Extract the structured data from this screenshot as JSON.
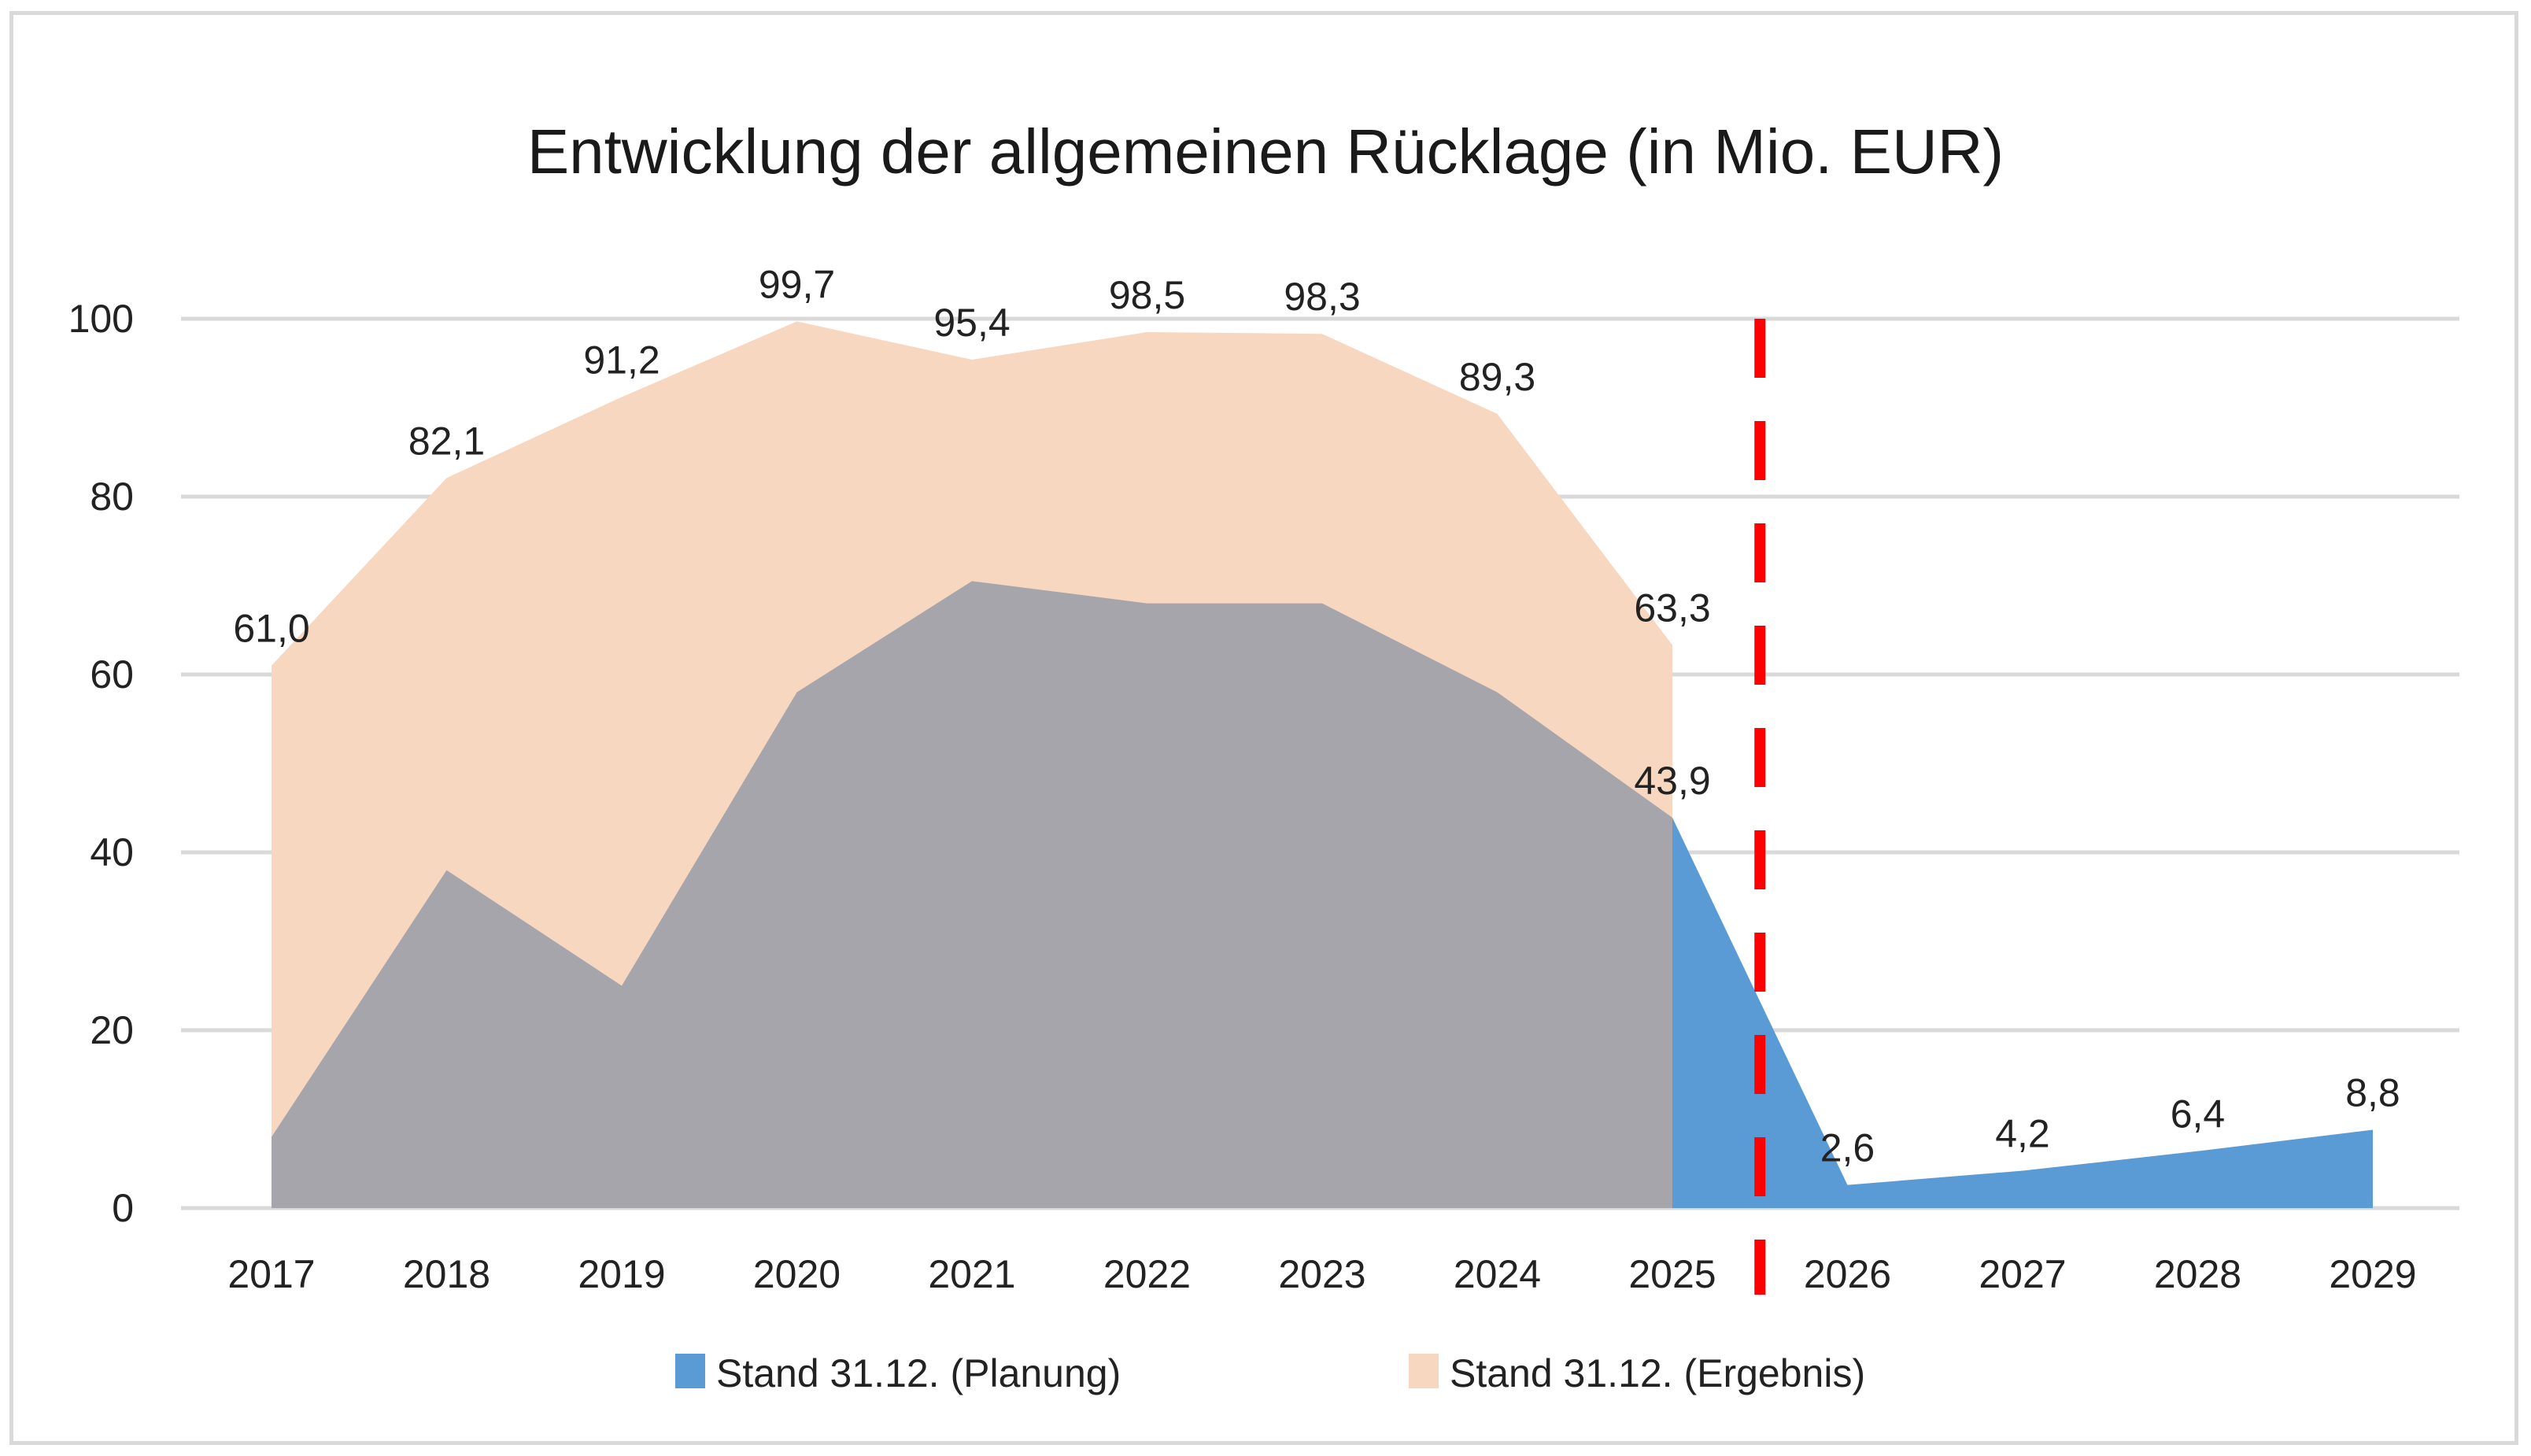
{
  "chart_data": {
    "type": "area",
    "title": "Entwicklung der allgemeinen Rücklage (in Mio. EUR)",
    "xlabel": "",
    "ylabel": "",
    "categories": [
      "2017",
      "2018",
      "2019",
      "2020",
      "2021",
      "2022",
      "2023",
      "2024",
      "2025",
      "2026",
      "2027",
      "2028",
      "2029"
    ],
    "ylim": [
      0,
      100
    ],
    "yticks": [
      0,
      20,
      40,
      60,
      80,
      100
    ],
    "grid": true,
    "legend_position": "bottom",
    "series": [
      {
        "name": "Stand 31.12. (Ergebnis)",
        "color": "#F8D7C1",
        "values": [
          61.0,
          82.1,
          91.2,
          99.7,
          95.4,
          98.5,
          98.3,
          89.3,
          63.3,
          null,
          null,
          null,
          null
        ],
        "labels": [
          "61,0",
          "82,1",
          "91,2",
          "99,7",
          "95,4",
          "98,5",
          "98,3",
          "89,3",
          "63,3",
          null,
          null,
          null,
          null
        ]
      },
      {
        "name": "Stand 31.12. (Planung)",
        "color": "#5B9BD5",
        "overlap_color": "#A6A5AC",
        "values": [
          8,
          38,
          25,
          58,
          70.5,
          68,
          68,
          58,
          43.9,
          2.6,
          4.2,
          6.4,
          8.8
        ],
        "labels": [
          null,
          null,
          null,
          null,
          null,
          null,
          null,
          null,
          "43,9",
          "2,6",
          "4,2",
          "6,4",
          "8,8"
        ]
      }
    ],
    "annotations": [
      {
        "type": "vertical-dashed-line",
        "between": [
          "2025",
          "2026"
        ],
        "color": "#FF0000"
      }
    ]
  },
  "legend": {
    "items": [
      {
        "label": "Stand 31.12. (Planung)",
        "color": "#5B9BD5"
      },
      {
        "label": "Stand 31.12. (Ergebnis)",
        "color": "#F8D7C1"
      }
    ]
  },
  "colors": {
    "grid": "#D9D9D9",
    "text": "#222222",
    "divider": "#FF0000"
  }
}
